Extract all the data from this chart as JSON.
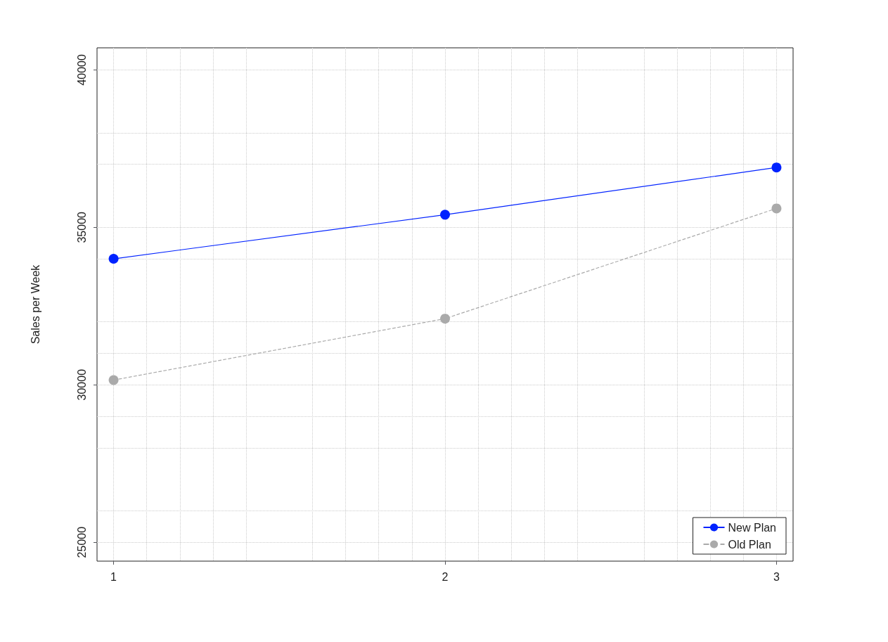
{
  "chart_data": {
    "type": "line",
    "ylabel": "Sales per Week",
    "x": [
      1,
      2,
      3
    ],
    "series": [
      {
        "name": "New Plan",
        "color": "#0022ff",
        "values": [
          34000,
          35400,
          36900
        ],
        "line_style": "solid"
      },
      {
        "name": "Old Plan",
        "color": "#aaaaaa",
        "values": [
          30150,
          32100,
          35600
        ],
        "line_style": "dashed"
      }
    ],
    "xlim": [
      0.95,
      3.05
    ],
    "xticks": [
      1,
      2,
      3
    ],
    "ylim": [
      24400,
      40700
    ],
    "yticks": [
      25000,
      30000,
      35000,
      40000
    ],
    "grid": true,
    "legend": "bottom right",
    "marker": "circle"
  }
}
